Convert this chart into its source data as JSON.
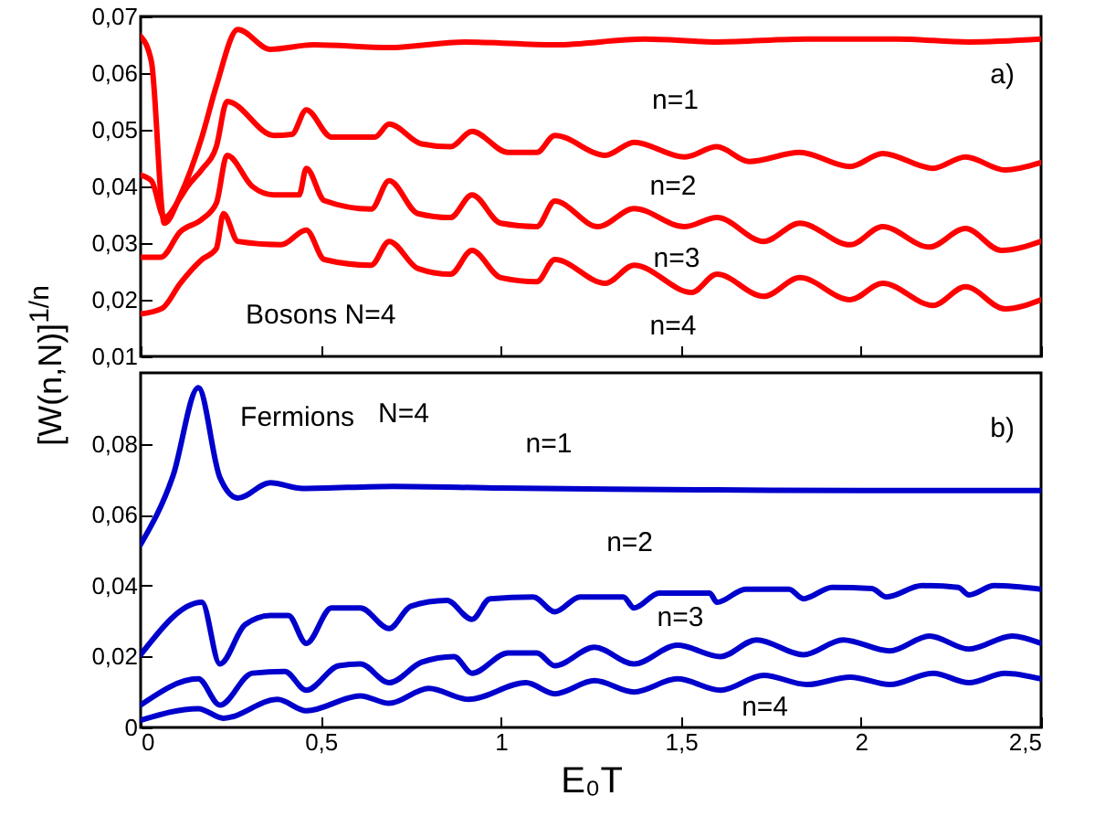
{
  "chart_data": [
    {
      "type": "line",
      "xlim": [
        0,
        2.5
      ],
      "xticks": [
        0,
        0.5,
        1,
        1.5,
        2,
        2.5
      ],
      "ylim": [
        0.01,
        0.07
      ],
      "yticks": [
        {
          "value": 0.01,
          "label": "0,01"
        },
        {
          "value": 0.02,
          "label": "0,02"
        },
        {
          "value": 0.03,
          "label": "0,03"
        },
        {
          "value": 0.04,
          "label": "0,04"
        },
        {
          "value": 0.05,
          "label": "0,05"
        },
        {
          "value": 0.06,
          "label": "0,06"
        },
        {
          "value": 0.07,
          "label": "0,07"
        }
      ],
      "tick_labels": "y",
      "ylabel": "[W(n,N)]$^{1/n}$",
      "series": [
        {
          "color": "#ff0000",
          "x": [
            0,
            0.03,
            0.066,
            0.11,
            0.17,
            0.21,
            0.27,
            0.36,
            0.48,
            0.69,
            0.9,
            1.15,
            1.4,
            1.6,
            1.85,
            2.1,
            2.3,
            2.5
          ],
          "values": [
            0.0665,
            0.062,
            0.0335,
            0.0384,
            0.0487,
            0.0577,
            0.0677,
            0.0642,
            0.065,
            0.0645,
            0.0655,
            0.065,
            0.066,
            0.0655,
            0.066,
            0.066,
            0.0655,
            0.066
          ]
        },
        {
          "color": "#ff0000",
          "x": [
            0,
            0.03,
            0.066,
            0.11,
            0.13,
            0.17,
            0.21,
            0.24,
            0.37,
            0.42,
            0.46,
            0.53,
            0.65,
            0.69,
            0.78,
            0.86,
            0.92,
            1.02,
            1.1,
            1.15,
            1.29,
            1.37,
            1.51,
            1.6,
            1.69,
            1.83,
            1.97,
            2.06,
            2.2,
            2.29,
            2.4,
            2.5
          ],
          "values": [
            0.042,
            0.041,
            0.0345,
            0.038,
            0.04,
            0.043,
            0.047,
            0.055,
            0.049,
            0.0492,
            0.0535,
            0.0487,
            0.0487,
            0.051,
            0.0475,
            0.047,
            0.0497,
            0.046,
            0.046,
            0.049,
            0.0455,
            0.0478,
            0.0452,
            0.047,
            0.0444,
            0.046,
            0.0435,
            0.0458,
            0.0432,
            0.0452,
            0.0429,
            0.0442
          ]
        },
        {
          "color": "#ff0000",
          "x": [
            0,
            0.056,
            0.11,
            0.17,
            0.21,
            0.24,
            0.31,
            0.37,
            0.44,
            0.46,
            0.51,
            0.64,
            0.69,
            0.77,
            0.86,
            0.92,
            1.0,
            1.1,
            1.15,
            1.27,
            1.37,
            1.51,
            1.6,
            1.73,
            1.83,
            1.97,
            2.06,
            2.19,
            2.29,
            2.39,
            2.5
          ],
          "values": [
            0.0275,
            0.0275,
            0.032,
            0.0342,
            0.037,
            0.0455,
            0.04,
            0.0385,
            0.0385,
            0.0432,
            0.0375,
            0.036,
            0.041,
            0.0352,
            0.0345,
            0.0385,
            0.0335,
            0.0329,
            0.0374,
            0.0329,
            0.0361,
            0.0329,
            0.0345,
            0.0303,
            0.0335,
            0.0297,
            0.0329,
            0.0293,
            0.0326,
            0.0287,
            0.0303
          ]
        },
        {
          "color": "#ff0000",
          "x": [
            0,
            0.06,
            0.11,
            0.17,
            0.21,
            0.23,
            0.27,
            0.39,
            0.46,
            0.51,
            0.64,
            0.69,
            0.77,
            0.86,
            0.92,
            1.0,
            1.1,
            1.15,
            1.29,
            1.37,
            1.53,
            1.6,
            1.73,
            1.83,
            1.97,
            2.06,
            2.2,
            2.29,
            2.4,
            2.5
          ],
          "values": [
            0.0175,
            0.0185,
            0.0229,
            0.0271,
            0.029,
            0.0352,
            0.0303,
            0.0297,
            0.0323,
            0.0271,
            0.0261,
            0.0303,
            0.0255,
            0.0245,
            0.0287,
            0.0239,
            0.0232,
            0.0271,
            0.0229,
            0.0261,
            0.0213,
            0.0245,
            0.0206,
            0.0239,
            0.02,
            0.0229,
            0.019,
            0.0223,
            0.0184,
            0.02
          ]
        }
      ],
      "annotations": [
        "a)",
        "Bosons  N=4",
        {
          "text": "n=1",
          "x": 1.51,
          "y": 0.066
        },
        {
          "text": "n=2",
          "x": 1.62,
          "y": 0.047
        },
        {
          "text": "n=3",
          "x": 1.62,
          "y": 0.0345
        },
        {
          "text": "n=4",
          "x": 1.62,
          "y": 0.0245
        }
      ]
    },
    {
      "type": "line",
      "xlim": [
        0,
        2.5
      ],
      "xticks": [
        0,
        {
          "value": 0.5,
          "label": "0,5"
        },
        1,
        {
          "value": 1.5,
          "label": "1,5"
        },
        2,
        {
          "value": 2.5,
          "label": "2,5"
        }
      ],
      "ylim": [
        0,
        0.1
      ],
      "yticks": [
        0,
        {
          "value": 0.02,
          "label": "0,02"
        },
        {
          "value": 0.04,
          "label": "0,04"
        },
        {
          "value": 0.06,
          "label": "0,06"
        },
        {
          "value": 0.08,
          "label": "0,08"
        }
      ],
      "xlabel": "E₀T",
      "series": [
        {
          "color": "#0000cc",
          "x": [
            0,
            0.09,
            0.16,
            0.22,
            0.27,
            0.36,
            0.45,
            0.7,
            1.0,
            1.3,
            1.6,
            2.0,
            2.5
          ],
          "values": [
            0.0516,
            0.071,
            0.0958,
            0.0705,
            0.0647,
            0.069,
            0.0674,
            0.068,
            0.0675,
            0.0672,
            0.067,
            0.0668,
            0.0668
          ]
        },
        {
          "color": "#0000cc",
          "x": [
            0,
            0.17,
            0.22,
            0.29,
            0.36,
            0.41,
            0.46,
            0.53,
            0.61,
            0.69,
            0.75,
            0.85,
            0.92,
            0.97,
            1.09,
            1.15,
            1.22,
            1.34,
            1.37,
            1.44,
            1.58,
            1.6,
            1.68,
            1.8,
            1.84,
            1.92,
            2.03,
            2.07,
            2.17,
            2.27,
            2.3,
            2.37,
            2.5
          ],
          "values": [
            0.0205,
            0.0353,
            0.0179,
            0.029,
            0.0316,
            0.0316,
            0.0237,
            0.0337,
            0.0337,
            0.0279,
            0.0342,
            0.0358,
            0.0305,
            0.0363,
            0.0368,
            0.0326,
            0.0368,
            0.0368,
            0.0337,
            0.0379,
            0.0379,
            0.0353,
            0.039,
            0.039,
            0.0363,
            0.0395,
            0.0392,
            0.0368,
            0.04,
            0.0395,
            0.0374,
            0.04,
            0.039
          ]
        },
        {
          "color": "#0000cc",
          "x": [
            0,
            0.16,
            0.22,
            0.31,
            0.4,
            0.46,
            0.55,
            0.61,
            0.69,
            0.78,
            0.87,
            0.92,
            1.02,
            1.1,
            1.15,
            1.26,
            1.37,
            1.49,
            1.61,
            1.71,
            1.84,
            1.95,
            2.08,
            2.19,
            2.3,
            2.42,
            2.5
          ],
          "values": [
            0.0063,
            0.0137,
            0.0063,
            0.0153,
            0.0158,
            0.0105,
            0.0174,
            0.0179,
            0.0126,
            0.0184,
            0.02,
            0.0153,
            0.021,
            0.021,
            0.0174,
            0.0226,
            0.0179,
            0.0232,
            0.02,
            0.0247,
            0.0205,
            0.0247,
            0.0216,
            0.0258,
            0.0221,
            0.0258,
            0.0237
          ]
        },
        {
          "color": "#0000cc",
          "x": [
            0,
            0.16,
            0.23,
            0.38,
            0.46,
            0.61,
            0.69,
            0.8,
            0.91,
            1.07,
            1.15,
            1.26,
            1.37,
            1.49,
            1.61,
            1.73,
            1.85,
            1.97,
            2.08,
            2.2,
            2.3,
            2.4,
            2.5
          ],
          "values": [
            0.002,
            0.0053,
            0.0026,
            0.0079,
            0.0047,
            0.0089,
            0.0068,
            0.011,
            0.0079,
            0.0126,
            0.0095,
            0.0132,
            0.01,
            0.0137,
            0.0105,
            0.0147,
            0.0121,
            0.0142,
            0.0121,
            0.0153,
            0.0126,
            0.0153,
            0.0137
          ]
        }
      ],
      "annotations": [
        "b)",
        "Fermions",
        "N=4",
        {
          "text": "n=1",
          "x": 1.25,
          "y": 0.0668
        },
        {
          "text": "n=2",
          "x": 1.5,
          "y": 0.0379
        },
        {
          "text": "n=3",
          "x": 1.62,
          "y": 0.021
        },
        {
          "text": "n=4",
          "x": 1.86,
          "y": 0.012
        }
      ]
    }
  ]
}
